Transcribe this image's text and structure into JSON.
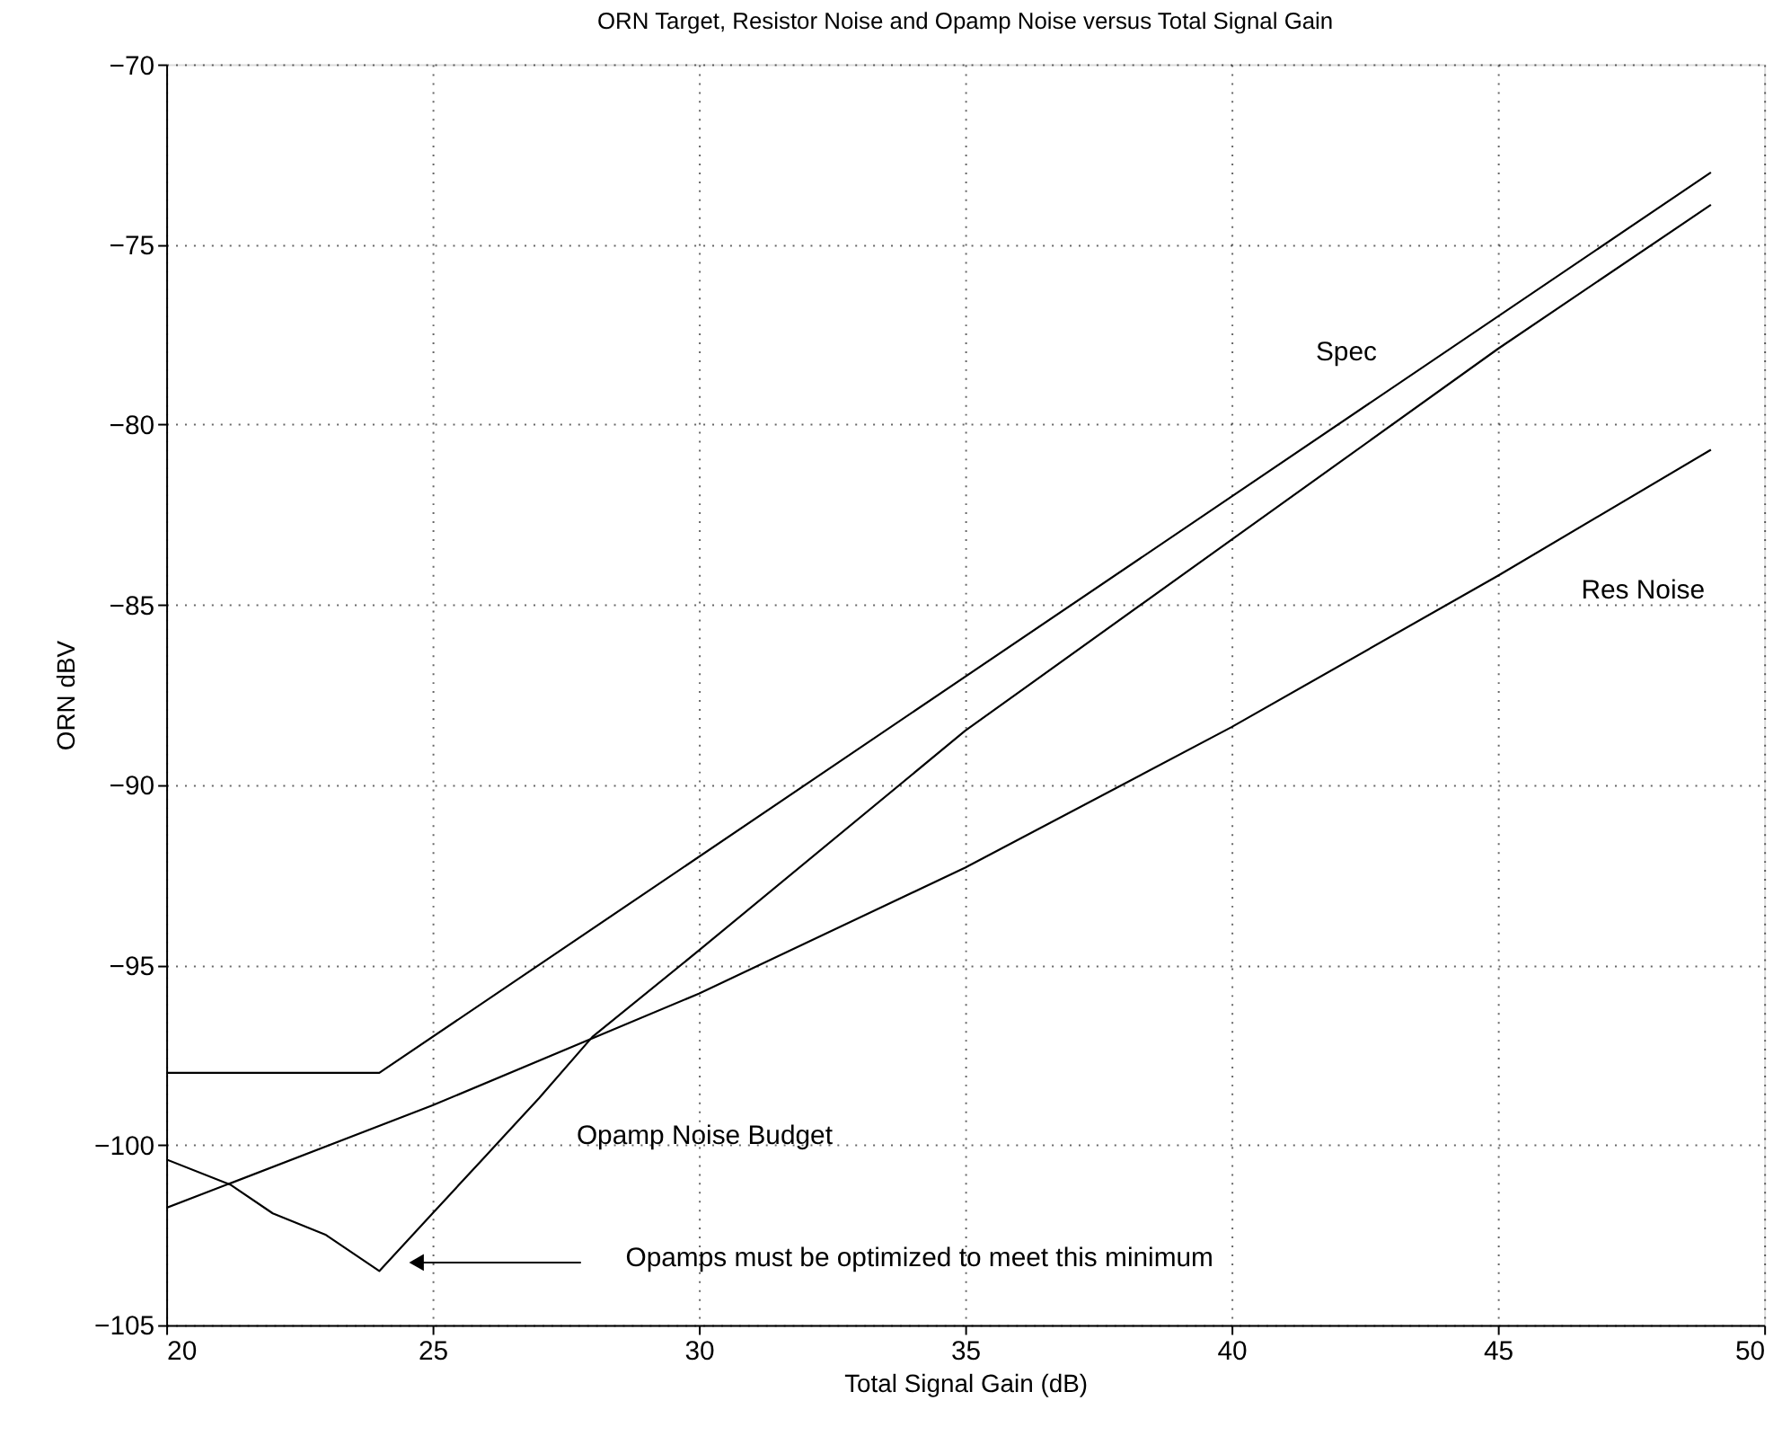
{
  "chart_data": {
    "type": "line",
    "title": "ORN Target, Resistor Noise and Opamp Noise versus Total Signal Gain",
    "xlabel": "Total Signal Gain (dB)",
    "ylabel": "ORN dBV",
    "xlim": [
      20,
      50
    ],
    "xticks": [
      20,
      25,
      30,
      35,
      40,
      45,
      50
    ],
    "ylim": [
      -105,
      -70
    ],
    "yticks": [
      -105,
      -100,
      -95,
      -90,
      -85,
      -80,
      -75,
      -70
    ],
    "grid": true,
    "legend": false,
    "marker": "none",
    "line_style": "solid",
    "series": [
      {
        "name": "Spec",
        "color": "#000000",
        "x": [
          20,
          24,
          49
        ],
        "values": [
          -98,
          -98,
          -73
        ]
      },
      {
        "name": "Res Noise",
        "color": "#000000",
        "x": [
          20,
          25,
          30,
          35,
          40,
          45,
          49
        ],
        "values": [
          -101.75,
          -98.9,
          -95.8,
          -92.3,
          -88.4,
          -84.2,
          -80.7
        ]
      },
      {
        "name": "Opamp Noise Budget",
        "color": "#000000",
        "x": [
          20,
          21.2,
          22,
          23,
          24,
          25,
          26,
          27,
          28,
          30,
          35,
          40,
          45,
          49
        ],
        "values": [
          -100.4,
          -101.1,
          -101.9,
          -102.5,
          -103.5,
          -101.9,
          -100.3,
          -98.7,
          -97.0,
          -94.6,
          -88.5,
          -83.2,
          -77.9,
          -73.9
        ]
      }
    ],
    "annotations": [
      "Opamps must be optimized to meet this minimum"
    ]
  }
}
